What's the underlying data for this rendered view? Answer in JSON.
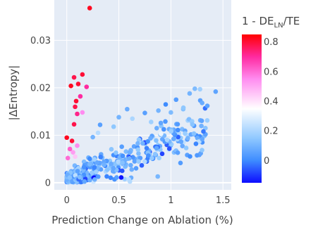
{
  "chart_data": {
    "type": "scatter",
    "title": "",
    "xlabel": "Prediction Change on Ablation (%)",
    "ylabel": "|ΔEntropy|",
    "xlim": [
      -0.12,
      1.58
    ],
    "ylim": [
      -0.0015,
      0.0385
    ],
    "x_ticks": [
      0,
      0.5,
      1,
      1.5
    ],
    "x_tick_labels": [
      "0",
      "0.5",
      "1",
      "1.5"
    ],
    "y_ticks": [
      0,
      0.01,
      0.02,
      0.03
    ],
    "y_tick_labels": [
      "0",
      "0.01",
      "0.02",
      "0.03"
    ],
    "grid": true,
    "plot_background": "#e5ecf6",
    "colorbar": {
      "title_main": "1 - DE",
      "title_sub": "LN",
      "title_tail": "/TE",
      "range": [
        -0.15,
        0.85
      ],
      "ticks": [
        0,
        0.2,
        0.4,
        0.6,
        0.8
      ],
      "tick_labels": [
        "0",
        "0.2",
        "0.4",
        "0.6",
        "0.8"
      ],
      "colorscale": [
        [
          0.0,
          "#0d0dff"
        ],
        [
          0.15,
          "#3e8cff"
        ],
        [
          0.3,
          "#8fc8ff"
        ],
        [
          0.5,
          "#ffffff"
        ],
        [
          0.7,
          "#ff8cf0"
        ],
        [
          0.85,
          "#ff2aa0"
        ],
        [
          1.0,
          "#ff0000"
        ]
      ]
    },
    "highlight_points": [
      {
        "x": 0.22,
        "y": 0.0368,
        "c": 0.82
      },
      {
        "x": 0.15,
        "y": 0.0228,
        "c": 0.8
      },
      {
        "x": 0.07,
        "y": 0.0222,
        "c": 0.78
      },
      {
        "x": 0.11,
        "y": 0.0208,
        "c": 0.8
      },
      {
        "x": 0.04,
        "y": 0.0204,
        "c": 0.82
      },
      {
        "x": 0.19,
        "y": 0.0202,
        "c": 0.7
      },
      {
        "x": 0.09,
        "y": 0.0172,
        "c": 0.8
      },
      {
        "x": 0.13,
        "y": 0.0182,
        "c": 0.7
      },
      {
        "x": 0.08,
        "y": 0.016,
        "c": 0.78
      },
      {
        "x": 0.1,
        "y": 0.0145,
        "c": 0.72
      },
      {
        "x": 0.15,
        "y": 0.0148,
        "c": 0.55
      },
      {
        "x": 0.07,
        "y": 0.0123,
        "c": 0.78
      },
      {
        "x": 0.0,
        "y": 0.0095,
        "c": 0.82
      },
      {
        "x": 0.05,
        "y": 0.0088,
        "c": 0.8
      },
      {
        "x": 0.1,
        "y": 0.0078,
        "c": 0.55
      },
      {
        "x": 0.03,
        "y": 0.0071,
        "c": 0.62
      },
      {
        "x": 0.06,
        "y": 0.0064,
        "c": 0.52
      },
      {
        "x": 0.01,
        "y": 0.0052,
        "c": 0.6
      },
      {
        "x": 0.08,
        "y": 0.0055,
        "c": 0.45
      }
    ],
    "outlier_points": [
      {
        "x": 1.23,
        "y": 0.0198,
        "c": 0.12
      },
      {
        "x": 1.28,
        "y": 0.0197,
        "c": 0.18
      },
      {
        "x": 1.43,
        "y": 0.0192,
        "c": 0.06
      },
      {
        "x": 1.18,
        "y": 0.0188,
        "c": 0.1
      },
      {
        "x": 1.05,
        "y": 0.0175,
        "c": 0.04
      },
      {
        "x": 1.3,
        "y": 0.0168,
        "c": 0.08
      },
      {
        "x": 0.95,
        "y": 0.0165,
        "c": 0.0
      },
      {
        "x": 1.12,
        "y": 0.0158,
        "c": 0.15
      },
      {
        "x": 1.35,
        "y": 0.0162,
        "c": 0.06
      },
      {
        "x": 0.88,
        "y": 0.0152,
        "c": 0.1
      },
      {
        "x": 1.0,
        "y": 0.0148,
        "c": 0.12
      },
      {
        "x": 0.75,
        "y": 0.0147,
        "c": 0.05
      },
      {
        "x": 0.5,
        "y": 0.0138,
        "c": 0.1
      },
      {
        "x": 0.63,
        "y": 0.0135,
        "c": 0.2
      },
      {
        "x": 0.58,
        "y": 0.0155,
        "c": 0.08
      },
      {
        "x": 0.81,
        "y": 0.0128,
        "c": 0.18
      },
      {
        "x": 0.32,
        "y": 0.0122,
        "c": 0.05
      },
      {
        "x": 0.45,
        "y": 0.0118,
        "c": 0.15
      },
      {
        "x": 0.3,
        "y": 0.0105,
        "c": 0.22
      },
      {
        "x": 0.25,
        "y": 0.0096,
        "c": 0.1
      }
    ],
    "main_cloud": {
      "count": 520,
      "x_max": 1.35,
      "slope": 0.0081,
      "intercept": 0.0004,
      "y_spread": 0.0026,
      "dense_fraction": 0.45,
      "dense_x_max": 0.28,
      "color_mean": 0.08,
      "color_spread": 0.14
    }
  }
}
